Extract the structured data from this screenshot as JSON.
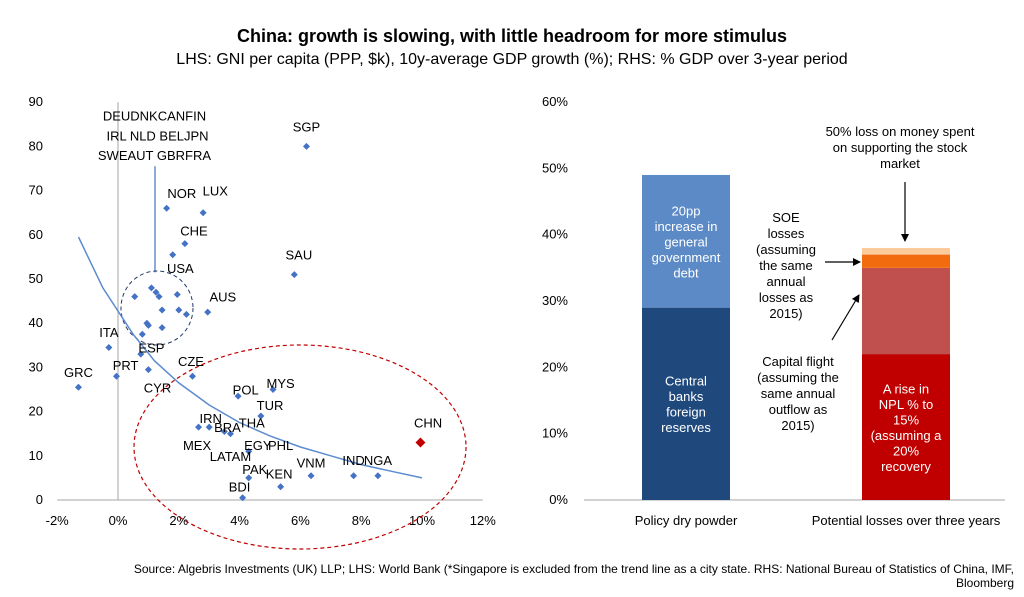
{
  "title": "China: growth is slowing, with little headroom for more stimulus",
  "subtitle": "LHS: GNI per capita (PPP, $k), 10y-average GDP growth (%); RHS: % GDP over 3-year period",
  "source": "Source: Algebris Investments (UK) LLP; LHS: World Bank (*Singapore is excluded from the trend line as a city state. RHS: National Bureau of Statistics of China, IMF, Bloomberg",
  "colors": {
    "point": "#4472c4",
    "trend": "#5b8bd0",
    "highlight": "#c00000",
    "dash_blue": "#1f3864",
    "dash_red": "#c00000",
    "axis": "#a6a6a6"
  },
  "chart_data": [
    {
      "type": "scatter",
      "xlabel": "10y-average GDP growth (%)",
      "ylabel": "GNI per capita (PPP, $k)",
      "xlim": [
        -2,
        12
      ],
      "ylim": [
        0,
        90
      ],
      "x_ticks": [
        -2,
        0,
        2,
        4,
        6,
        8,
        10,
        12
      ],
      "x_tick_labels": [
        "-2%",
        "0%",
        "2%",
        "4%",
        "6%",
        "8%",
        "10%",
        "12%"
      ],
      "y_ticks": [
        0,
        10,
        20,
        30,
        40,
        50,
        60,
        70,
        80,
        90
      ],
      "y_tick_labels": [
        "0",
        "10",
        "20",
        "30",
        "40",
        "50",
        "60",
        "70",
        "80",
        "90"
      ],
      "points": [
        {
          "x": -1.3,
          "y": 25.5
        },
        {
          "x": -0.3,
          "y": 34.5
        },
        {
          "x": -0.05,
          "y": 28
        },
        {
          "x": 0.55,
          "y": 46
        },
        {
          "x": 0.75,
          "y": 33
        },
        {
          "x": 0.8,
          "y": 37.5
        },
        {
          "x": 0.95,
          "y": 40
        },
        {
          "x": 1.0,
          "y": 29.5
        },
        {
          "x": 1.0,
          "y": 39.5
        },
        {
          "x": 1.1,
          "y": 48
        },
        {
          "x": 1.25,
          "y": 47
        },
        {
          "x": 1.35,
          "y": 46
        },
        {
          "x": 1.45,
          "y": 43
        },
        {
          "x": 1.45,
          "y": 39
        },
        {
          "x": 1.6,
          "y": 66
        },
        {
          "x": 1.8,
          "y": 55.5
        },
        {
          "x": 1.95,
          "y": 46.5
        },
        {
          "x": 2.0,
          "y": 43
        },
        {
          "x": 2.2,
          "y": 58
        },
        {
          "x": 2.25,
          "y": 42
        },
        {
          "x": 2.45,
          "y": 28
        },
        {
          "x": 2.8,
          "y": 65
        },
        {
          "x": 2.95,
          "y": 42.5
        },
        {
          "x": 2.65,
          "y": 16.5
        },
        {
          "x": 3.0,
          "y": 16.5
        },
        {
          "x": 3.5,
          "y": 15.5
        },
        {
          "x": 3.7,
          "y": 15
        },
        {
          "x": 3.95,
          "y": 23.5
        },
        {
          "x": 4.1,
          "y": 0.5
        },
        {
          "x": 4.3,
          "y": 11
        },
        {
          "x": 4.3,
          "y": 5
        },
        {
          "x": 4.7,
          "y": 19
        },
        {
          "x": 5.1,
          "y": 25
        },
        {
          "x": 5.35,
          "y": 3
        },
        {
          "x": 5.8,
          "y": 51
        },
        {
          "x": 6.2,
          "y": 80
        },
        {
          "x": 6.35,
          "y": 5.5
        },
        {
          "x": 7.75,
          "y": 5.5
        },
        {
          "x": 8.55,
          "y": 5.5
        }
      ],
      "highlight_point": {
        "label": "CHN",
        "x": 9.95,
        "y": 13
      },
      "labels": [
        {
          "text": "DEUDNKCANFIN",
          "x": 1.2,
          "y": 87
        },
        {
          "text": "IRL NLD BELJPN",
          "x": 1.3,
          "y": 82.5
        },
        {
          "text": "SWEAUT GBRFRA",
          "x": 1.2,
          "y": 78
        },
        {
          "text": "SGP",
          "x": 6.2,
          "y": 84.5
        },
        {
          "text": "NOR",
          "x": 2.1,
          "y": 69.5
        },
        {
          "text": "LUX",
          "x": 3.2,
          "y": 70
        },
        {
          "text": "CHE",
          "x": 2.5,
          "y": 61
        },
        {
          "text": "USA",
          "x": 2.05,
          "y": 52.5
        },
        {
          "text": "SAU",
          "x": 5.95,
          "y": 55.5
        },
        {
          "text": "AUS",
          "x": 3.45,
          "y": 46
        },
        {
          "text": "ITA",
          "x": -0.3,
          "y": 38
        },
        {
          "text": "ESP",
          "x": 1.1,
          "y": 34.5
        },
        {
          "text": "GRC",
          "x": -1.3,
          "y": 29
        },
        {
          "text": "PRT",
          "x": 0.25,
          "y": 30.5
        },
        {
          "text": "CZE",
          "x": 2.4,
          "y": 31.5
        },
        {
          "text": "CYR",
          "x": 1.3,
          "y": 25.5
        },
        {
          "text": "POL",
          "x": 4.2,
          "y": 25
        },
        {
          "text": "MYS",
          "x": 5.35,
          "y": 26.5
        },
        {
          "text": "TUR",
          "x": 5.0,
          "y": 21.5
        },
        {
          "text": "IRN",
          "x": 3.05,
          "y": 18.5
        },
        {
          "text": "THA",
          "x": 4.4,
          "y": 17.5
        },
        {
          "text": "BRA",
          "x": 3.6,
          "y": 16.5
        },
        {
          "text": "MEX",
          "x": 2.6,
          "y": 12.5
        },
        {
          "text": "EGY",
          "x": 4.6,
          "y": 12.5
        },
        {
          "text": "PHL",
          "x": 5.35,
          "y": 12.5
        },
        {
          "text": "LATAM",
          "x": 3.7,
          "y": 10
        },
        {
          "text": "VNM",
          "x": 6.35,
          "y": 8.5
        },
        {
          "text": "IND",
          "x": 7.75,
          "y": 9
        },
        {
          "text": "NGA",
          "x": 8.55,
          "y": 9
        },
        {
          "text": "PAK",
          "x": 4.5,
          "y": 7
        },
        {
          "text": "KEN",
          "x": 5.3,
          "y": 6
        },
        {
          "text": "BDI",
          "x": 4.0,
          "y": 3
        },
        {
          "text": "CHN",
          "x": 10.2,
          "y": 17.5
        }
      ],
      "trend_line": {
        "x": [
          -1.3,
          -0.5,
          0.5,
          1.2,
          2,
          3,
          4,
          5,
          6,
          7,
          8,
          9,
          10
        ],
        "y": [
          59.5,
          48,
          37.5,
          31.5,
          26.5,
          21.5,
          17.5,
          14.5,
          12,
          10,
          8,
          6.5,
          5
        ]
      }
    },
    {
      "type": "stacked_bar",
      "categories": [
        "Policy dry powder",
        "Potential losses over three years"
      ],
      "ylim": [
        0,
        60
      ],
      "y_ticks": [
        0,
        10,
        20,
        30,
        40,
        50,
        60
      ],
      "y_tick_labels": [
        "0%",
        "10%",
        "20%",
        "30%",
        "40%",
        "50%",
        "60%"
      ],
      "series": [
        {
          "name": "Central banks foreign reserves",
          "category": "Policy dry powder",
          "values": [
            29,
            0
          ],
          "color": "#1f497d",
          "label_lines": [
            "Central",
            "banks",
            "foreign",
            "reserves"
          ]
        },
        {
          "name": "20pp increase in general government debt",
          "category": "Policy dry powder",
          "values": [
            20,
            0
          ],
          "color": "#5b8ac6",
          "label_lines": [
            "20pp",
            "increase in",
            "general",
            "government",
            "debt"
          ]
        },
        {
          "name": "A rise in NPL % to 15% (assuming a 20% recovery)",
          "category": "Potential losses over three years",
          "values": [
            0,
            22
          ],
          "color": "#c00000",
          "label_lines": [
            "A rise in",
            "NPL % to",
            "15%",
            "(assuming a",
            "20%",
            "recovery"
          ]
        },
        {
          "name": "Capital flight",
          "category": "Potential losses over three years",
          "values": [
            0,
            13
          ],
          "color": "#c0504d",
          "label_lines": []
        },
        {
          "name": "SOE losses",
          "category": "Potential losses over three years",
          "values": [
            0,
            2
          ],
          "color": "#f26b0f",
          "label_lines": []
        },
        {
          "name": "50% loss on money spent on supporting the stock market",
          "category": "Potential losses over three years",
          "values": [
            0,
            1
          ],
          "color": "#fbcb9c",
          "label_lines": []
        }
      ],
      "annotations": [
        {
          "lines": [
            "50% loss on money spent",
            "on supporting the stock",
            "market"
          ]
        },
        {
          "lines": [
            "SOE",
            "losses",
            "(assuming",
            "the same",
            "annual",
            "losses as",
            "2015)"
          ]
        },
        {
          "lines": [
            "Capital flight",
            "(assuming the",
            "same annual",
            "outflow as",
            "2015)"
          ]
        }
      ]
    }
  ]
}
